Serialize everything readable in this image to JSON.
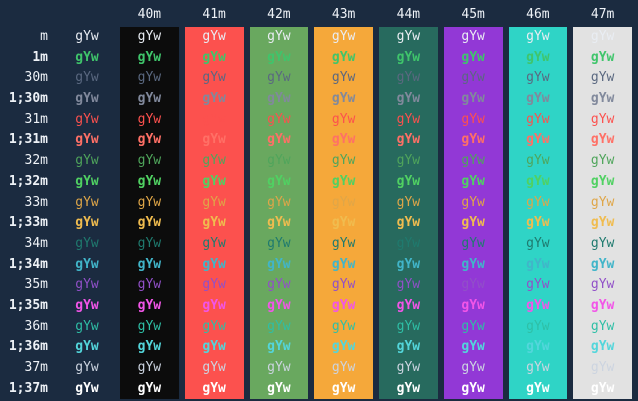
{
  "terminal": {
    "test_string": "gYw",
    "header_columns": [
      "40m",
      "41m",
      "42m",
      "43m",
      "44m",
      "45m",
      "46m",
      "47m"
    ],
    "background_colors": [
      "#0c0c0c",
      "#fc514e",
      "#69a85f",
      "#f5a83a",
      "#276a5e",
      "#9238d6",
      "#2fd4c6",
      "#e2e2e2"
    ],
    "rows": [
      {
        "label": "m",
        "fg": "#e9edf3",
        "bold": false
      },
      {
        "label": "1m",
        "fg": "#3fc56b",
        "bold": true
      },
      {
        "label": "30m",
        "fg": "#5a6880",
        "bold": false
      },
      {
        "label": "1;30m",
        "fg": "#81899c",
        "bold": true
      },
      {
        "label": "31m",
        "fg": "#fc514e",
        "bold": false
      },
      {
        "label": "1;31m",
        "fg": "#ff7066",
        "bold": true
      },
      {
        "label": "32m",
        "fg": "#4fa55b",
        "bold": false
      },
      {
        "label": "1;32m",
        "fg": "#50d162",
        "bold": true
      },
      {
        "label": "33m",
        "fg": "#dfa648",
        "bold": false
      },
      {
        "label": "1;33m",
        "fg": "#f0bc4f",
        "bold": true
      },
      {
        "label": "34m",
        "fg": "#1f7a6e",
        "bold": false
      },
      {
        "label": "1;34m",
        "fg": "#41b5c9",
        "bold": true
      },
      {
        "label": "35m",
        "fg": "#9150c8",
        "bold": false
      },
      {
        "label": "1;35m",
        "fg": "#f255e8",
        "bold": true
      },
      {
        "label": "36m",
        "fg": "#2ebfa6",
        "bold": false
      },
      {
        "label": "1;36m",
        "fg": "#53d6db",
        "bold": true
      },
      {
        "label": "37m",
        "fg": "#ccd4e0",
        "bold": false
      },
      {
        "label": "1;37m",
        "fg": "#ffffff",
        "bold": true
      }
    ],
    "colors": {
      "page_bg": "#1b2b40",
      "label_fg": "#eef2f7"
    }
  }
}
